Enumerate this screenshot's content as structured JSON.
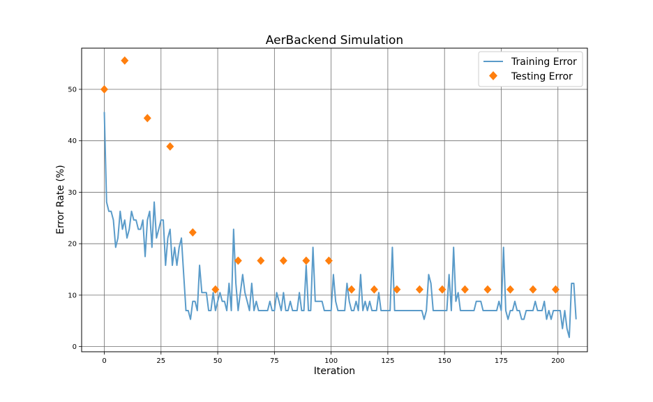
{
  "chart_data": {
    "type": "line",
    "title": "AerBackend Simulation",
    "xlabel": "Iteration",
    "ylabel": "Error Rate (%)",
    "xlim": [
      -10,
      213
    ],
    "ylim": [
      -1,
      58
    ],
    "xticks": [
      0,
      25,
      50,
      75,
      100,
      125,
      150,
      175,
      200
    ],
    "yticks": [
      0,
      10,
      20,
      30,
      40,
      50
    ],
    "grid": true,
    "legend_position": "top-right",
    "series": [
      {
        "name": "Training Error",
        "kind": "line",
        "color": "#5a9bc9",
        "x_start": 0,
        "x_step": 1,
        "values": [
          45.6,
          28.1,
          26.3,
          26.3,
          24.6,
          19.3,
          21.1,
          26.3,
          22.8,
          24.6,
          21.1,
          22.8,
          26.3,
          24.6,
          24.6,
          22.8,
          22.8,
          24.6,
          17.5,
          24.6,
          26.3,
          19.3,
          28.1,
          21.1,
          22.8,
          24.6,
          24.6,
          15.8,
          21.1,
          22.8,
          15.8,
          19.3,
          15.8,
          19.3,
          21.1,
          14.0,
          7.0,
          7.0,
          5.3,
          8.8,
          8.8,
          7.0,
          15.8,
          10.5,
          10.5,
          10.5,
          7.0,
          7.0,
          10.5,
          7.0,
          8.8,
          10.5,
          8.8,
          8.8,
          7.0,
          12.3,
          7.0,
          22.8,
          12.3,
          7.0,
          10.5,
          14.0,
          10.5,
          8.8,
          7.0,
          12.3,
          7.0,
          8.8,
          7.0,
          7.0,
          7.0,
          7.0,
          7.0,
          8.8,
          7.0,
          7.0,
          10.5,
          8.8,
          7.0,
          10.5,
          7.0,
          7.0,
          8.8,
          7.0,
          7.0,
          7.0,
          10.5,
          7.0,
          7.0,
          15.8,
          7.0,
          7.0,
          19.3,
          8.8,
          8.8,
          8.8,
          8.8,
          7.0,
          7.0,
          7.0,
          7.0,
          14.0,
          8.8,
          7.0,
          7.0,
          7.0,
          7.0,
          12.3,
          8.8,
          7.0,
          7.0,
          8.8,
          7.0,
          14.0,
          7.0,
          8.8,
          7.0,
          8.8,
          7.0,
          7.0,
          7.0,
          10.5,
          7.0,
          7.0,
          7.0,
          7.0,
          7.0,
          19.3,
          7.0,
          7.0,
          7.0,
          7.0,
          7.0,
          7.0,
          7.0,
          7.0,
          7.0,
          7.0,
          7.0,
          7.0,
          7.0,
          5.3,
          7.0,
          14.0,
          12.3,
          7.0,
          7.0,
          7.0,
          7.0,
          7.0,
          7.0,
          7.0,
          14.0,
          7.0,
          19.3,
          8.8,
          10.5,
          7.0,
          7.0,
          7.0,
          7.0,
          7.0,
          7.0,
          7.0,
          8.8,
          8.8,
          8.8,
          7.0,
          7.0,
          7.0,
          7.0,
          7.0,
          7.0,
          7.0,
          8.8,
          7.0,
          19.3,
          7.0,
          5.3,
          7.0,
          7.0,
          8.8,
          7.0,
          7.0,
          5.3,
          5.3,
          7.0,
          7.0,
          7.0,
          7.0,
          8.8,
          7.0,
          7.0,
          7.0,
          8.8,
          5.3,
          7.0,
          5.3,
          7.0,
          7.0,
          7.0,
          7.0,
          3.5,
          7.0,
          3.5,
          1.8,
          12.3,
          12.3,
          5.3
        ]
      },
      {
        "name": "Testing Error",
        "kind": "marker",
        "marker": "diamond",
        "color": "#ff7f0e",
        "x": [
          0,
          9,
          19,
          29,
          39,
          49,
          59,
          69,
          79,
          89,
          99,
          109,
          119,
          129,
          139,
          149,
          159,
          169,
          179,
          189,
          199
        ],
        "values": [
          50.0,
          55.6,
          44.4,
          38.9,
          22.2,
          11.1,
          16.7,
          16.7,
          16.7,
          16.7,
          16.7,
          11.1,
          11.1,
          11.1,
          11.1,
          11.1,
          11.1,
          11.1,
          11.1,
          11.1,
          11.1
        ]
      }
    ]
  }
}
